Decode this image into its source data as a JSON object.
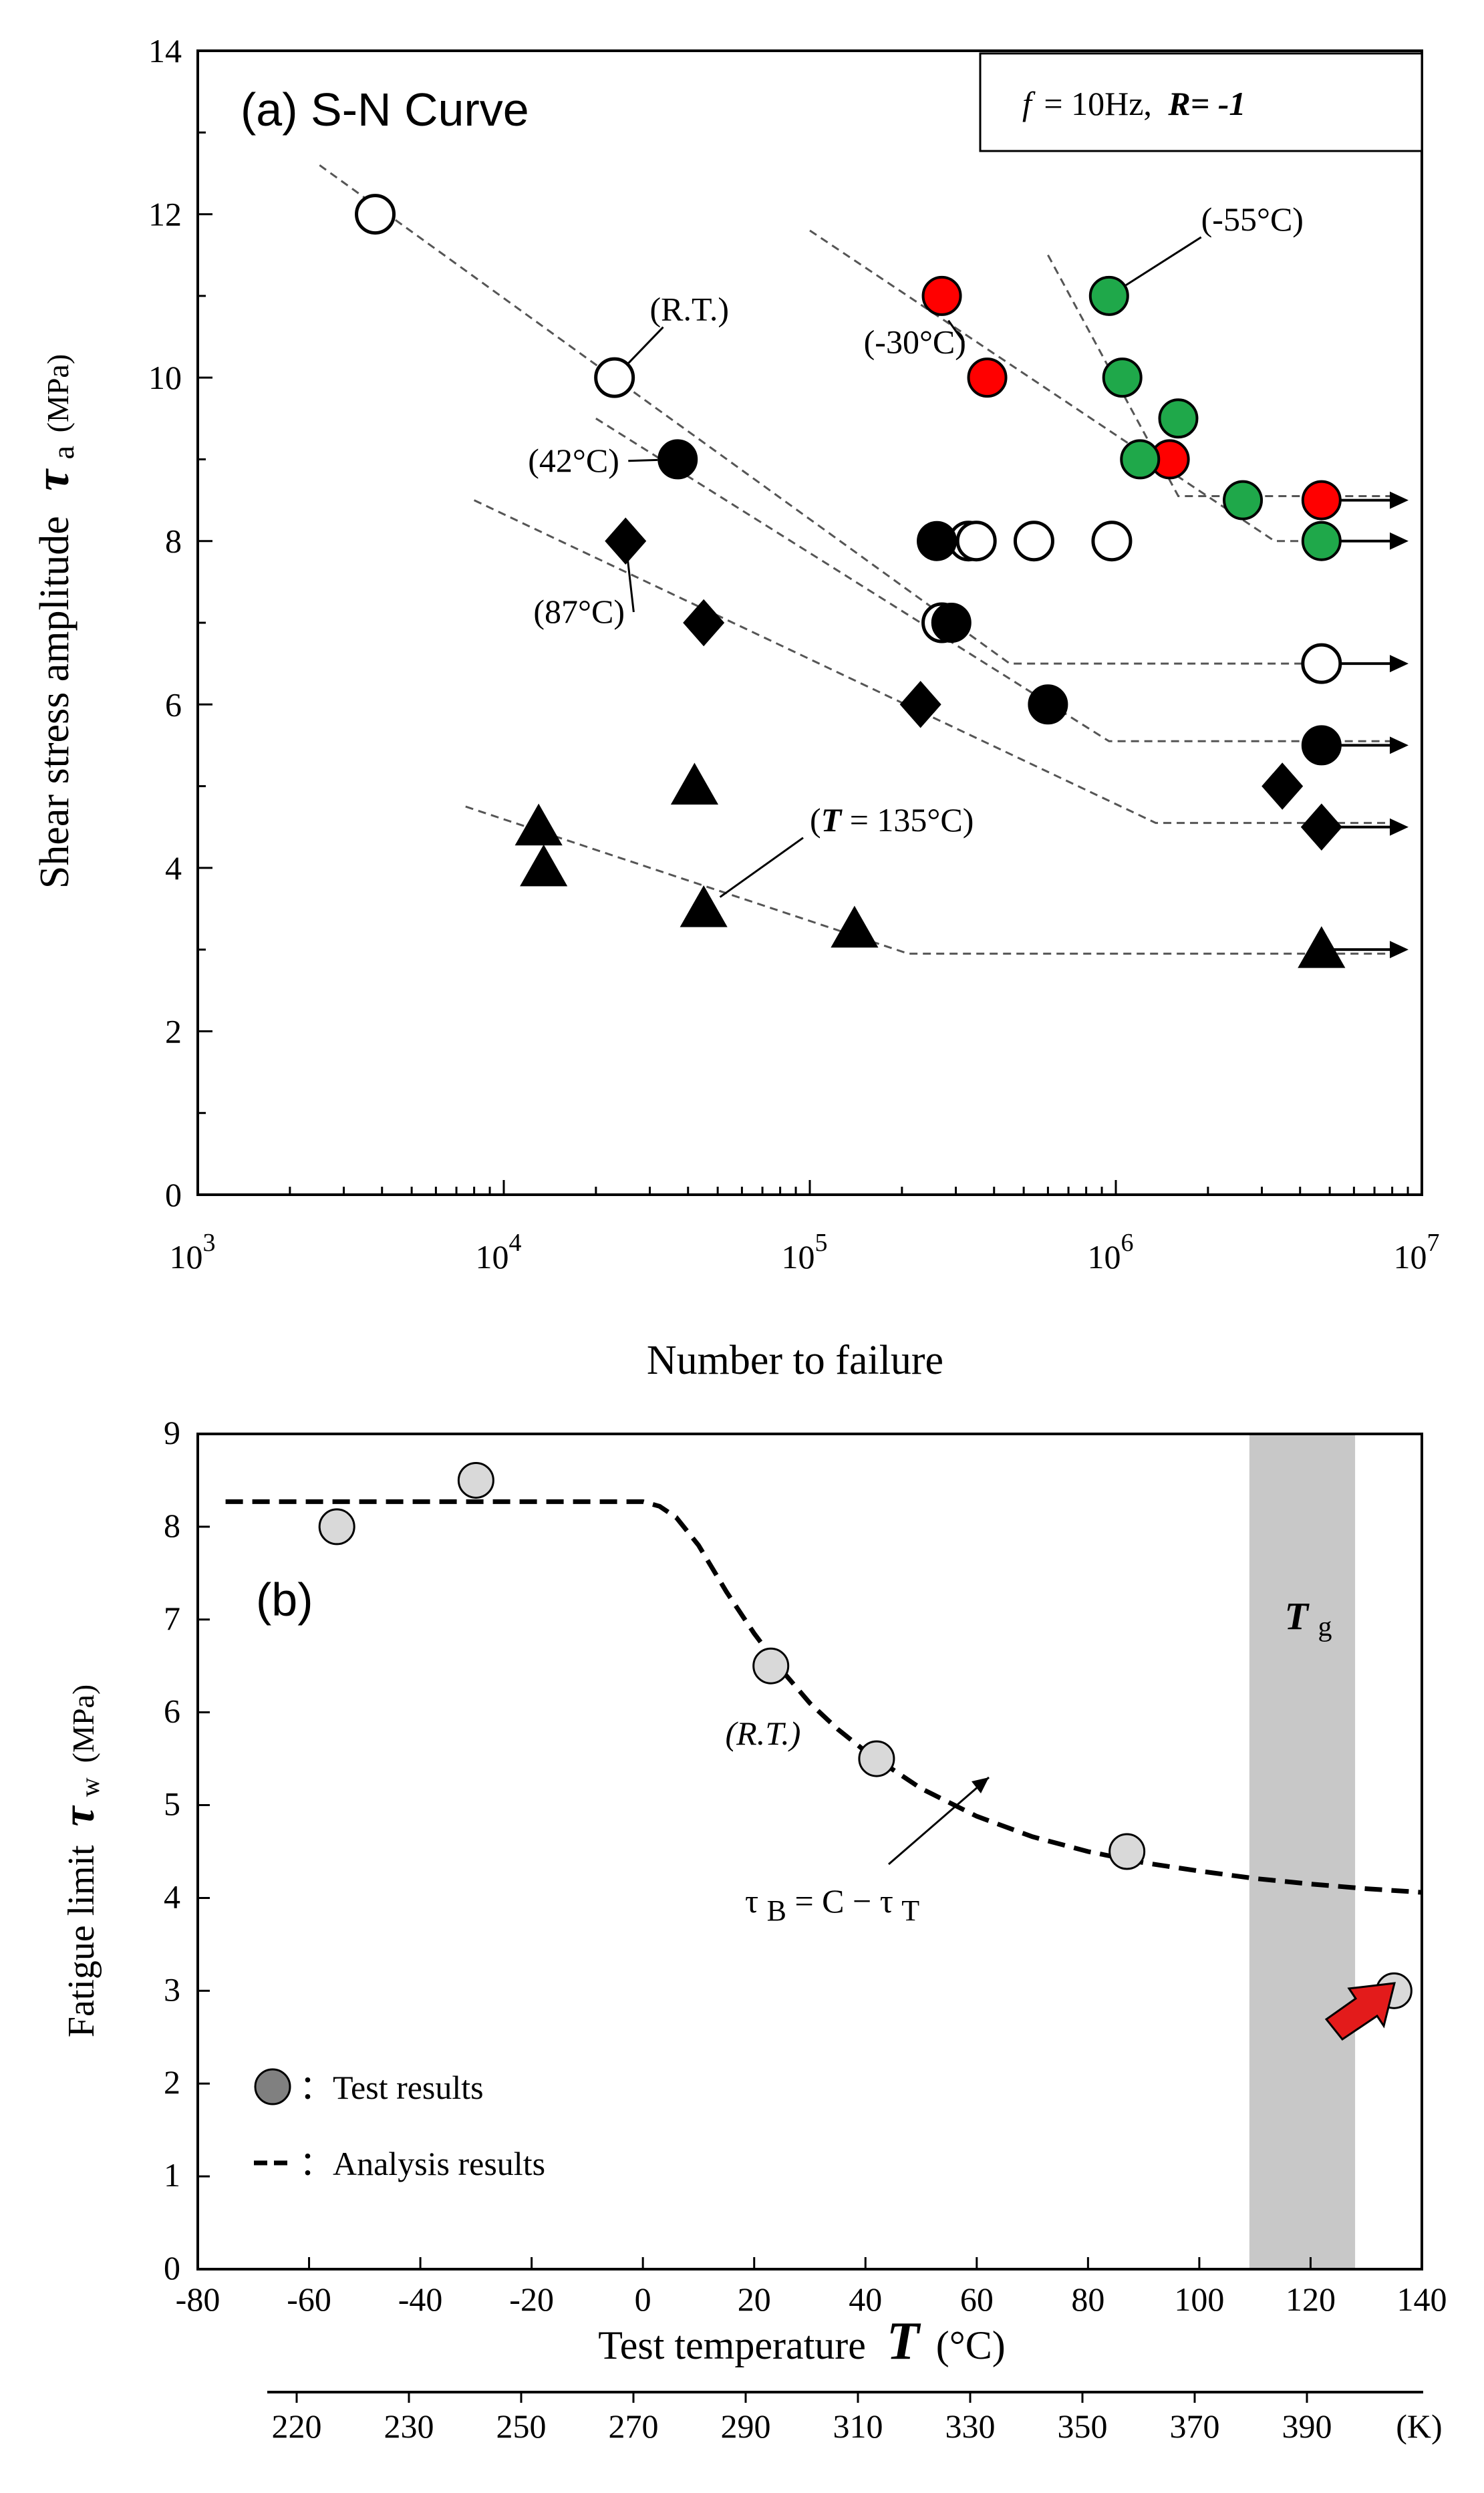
{
  "chart_data": [
    {
      "type": "scatter",
      "panel_label": "(a) S-N Curve",
      "condition_box": {
        "f_symbol": "f",
        "f_text": "= 10Hz,",
        "r_text": "R= -1"
      },
      "xlabel": "Number to failure",
      "ylabel": "Shear stress amplitude",
      "ylabel_symbol": "τ",
      "ylabel_sub": "a",
      "ylabel_unit": "(MPa)",
      "x_scale": "log",
      "xlim": [
        1000,
        10000000
      ],
      "ylim": [
        0,
        14
      ],
      "x_tick_bases": [
        "10",
        "10",
        "10",
        "10",
        "10"
      ],
      "x_tick_exps": [
        "3",
        "4",
        "5",
        "6",
        "7"
      ],
      "y_ticks": [
        "0",
        "2",
        "4",
        "6",
        "8",
        "10",
        "12",
        "14"
      ],
      "series": [
        {
          "name": "R.T.",
          "marker": "open-circle",
          "fill": "#ffffff",
          "points": [
            [
              3800,
              12
            ],
            [
              23000,
              10
            ],
            [
              270000,
              7
            ],
            [
              330000,
              8
            ],
            [
              350000,
              8
            ],
            [
              540000,
              8
            ],
            [
              970000,
              8
            ],
            [
              4700000,
              6.5
            ]
          ]
        },
        {
          "name": "42°C",
          "marker": "circle",
          "fill": "#000000",
          "points": [
            [
              37000,
              9
            ],
            [
              260000,
              8
            ],
            [
              290000,
              7
            ],
            [
              600000,
              6
            ],
            [
              4700000,
              5.5
            ]
          ]
        },
        {
          "name": "87°C",
          "marker": "diamond",
          "fill": "#000000",
          "points": [
            [
              25000,
              8
            ],
            [
              45000,
              7
            ],
            [
              230000,
              6
            ],
            [
              3500000,
              5
            ],
            [
              4700000,
              4.5
            ]
          ]
        },
        {
          "name": "135°C",
          "marker": "triangle",
          "fill": "#000000",
          "points": [
            [
              13000,
              4.5
            ],
            [
              13500,
              4
            ],
            [
              42000,
              5
            ],
            [
              45000,
              3.5
            ],
            [
              140000,
              3.25
            ],
            [
              4700000,
              3
            ]
          ]
        },
        {
          "name": "-30°C",
          "marker": "circle",
          "fill": "#ff0000",
          "points": [
            [
              270000,
              11
            ],
            [
              380000,
              10
            ],
            [
              1500000,
              9
            ],
            [
              4700000,
              8.5
            ]
          ]
        },
        {
          "name": "-55°C",
          "marker": "circle",
          "fill": "#1fa84a",
          "points": [
            [
              950000,
              11
            ],
            [
              1050000,
              10
            ],
            [
              1200000,
              9
            ],
            [
              1600000,
              9.5
            ],
            [
              2600000,
              8.5
            ],
            [
              4700000,
              8
            ]
          ]
        }
      ],
      "fit_lines": [
        {
          "name": "-55°C",
          "points": [
            [
              600000,
              11.5
            ],
            [
              1600000,
              8.55
            ],
            [
              2400000,
              8.55
            ],
            [
              8000000,
              8.55
            ]
          ]
        },
        {
          "name": "-30°C",
          "points": [
            [
              100000,
              11.8
            ],
            [
              3300000,
              8
            ],
            [
              8000000,
              8
            ]
          ]
        },
        {
          "name": "R.T.",
          "points": [
            [
              2500,
              12.6
            ],
            [
              450000,
              6.5
            ],
            [
              8000000,
              6.5
            ]
          ]
        },
        {
          "name": "42°C",
          "points": [
            [
              20000,
              9.5
            ],
            [
              950000,
              5.55
            ],
            [
              8000000,
              5.55
            ]
          ]
        },
        {
          "name": "87°C",
          "points": [
            [
              8000,
              8.5
            ],
            [
              1350000,
              4.55
            ],
            [
              8000000,
              4.55
            ]
          ]
        },
        {
          "name": "135°C",
          "points": [
            [
              7500,
              4.75
            ],
            [
              210000,
              2.95
            ],
            [
              8000000,
              2.95
            ]
          ]
        }
      ],
      "runout_arrows": [
        8.5,
        8,
        6.5,
        5.5,
        4.5,
        3
      ],
      "annotations": [
        {
          "text": "(R.T.)",
          "x": 30000,
          "y": 10.7,
          "to": [
            23000,
            10
          ]
        },
        {
          "text": "(-30°C)",
          "x": 150000,
          "y": 10.3,
          "to": [
            260000,
            10.9
          ]
        },
        {
          "text": "(-55°C)",
          "x": 1900000,
          "y": 11.8,
          "to": [
            950000,
            11
          ]
        },
        {
          "text": "(42°C)",
          "x": 12000,
          "y": 8.85,
          "to": [
            37000,
            9
          ]
        },
        {
          "text": "(87°C)",
          "x": 12500,
          "y": 7,
          "to": [
            25000,
            8
          ]
        },
        {
          "text": "135°C)",
          "x": 100000,
          "y": 4.45,
          "to": [
            45000,
            3.5
          ]
        }
      ],
      "annotation_t135_prefix": "(",
      "annotation_t135_symbol": "T",
      "annotation_t135_eq": " = "
    },
    {
      "type": "scatter",
      "panel_label": "(b)",
      "xlabel": "Test temperature",
      "xlabel_symbol": "T",
      "xlabel_unit": "(°C)",
      "ylabel": "Fatigue limit",
      "ylabel_symbol": "τ",
      "ylabel_sub": "w",
      "ylabel_unit": "(MPa)",
      "xlim": [
        -80,
        140
      ],
      "ylim": [
        0,
        9
      ],
      "x_ticks": [
        "-80",
        "-60",
        "-40",
        "-20",
        "0",
        "20",
        "40",
        "60",
        "80",
        "100",
        "120",
        "140"
      ],
      "y_ticks": [
        "0",
        "1",
        "2",
        "3",
        "4",
        "5",
        "6",
        "7",
        "8",
        "9"
      ],
      "kelvin_ticks": [
        "220",
        "230",
        "250",
        "270",
        "290",
        "310",
        "330",
        "350",
        "370",
        "390",
        "(K)"
      ],
      "tg_band": [
        109,
        128
      ],
      "tg_label": "T",
      "tg_sub": "g",
      "test_results": [
        [
          -55,
          8
        ],
        [
          -30,
          8.5
        ],
        [
          23,
          6.5
        ],
        [
          42,
          5.5
        ],
        [
          87,
          4.5
        ],
        [
          135,
          3
        ]
      ],
      "analysis_curve": [
        [
          -75,
          8.27
        ],
        [
          -60,
          8.27
        ],
        [
          -30,
          8.27
        ],
        [
          0,
          8.27
        ],
        [
          3,
          8.22
        ],
        [
          6,
          8.1
        ],
        [
          10,
          7.8
        ],
        [
          15,
          7.3
        ],
        [
          20,
          6.85
        ],
        [
          25,
          6.45
        ],
        [
          30,
          6.1
        ],
        [
          35,
          5.82
        ],
        [
          40,
          5.58
        ],
        [
          50,
          5.18
        ],
        [
          60,
          4.88
        ],
        [
          70,
          4.66
        ],
        [
          80,
          4.5
        ],
        [
          90,
          4.38
        ],
        [
          100,
          4.29
        ],
        [
          110,
          4.21
        ],
        [
          120,
          4.15
        ],
        [
          130,
          4.1
        ],
        [
          140,
          4.06
        ]
      ],
      "annotation_rt": "(R.T.)",
      "equation": {
        "tau": "τ",
        "sub_b": "B",
        "mid": " = C − ",
        "sub_t": "T"
      },
      "legend": [
        {
          "symbol": "circle",
          "label": "：Test results"
        },
        {
          "symbol": "dash",
          "label": "：Analysis results"
        }
      ],
      "highlight_arrow_color": "#e31b1b"
    }
  ]
}
